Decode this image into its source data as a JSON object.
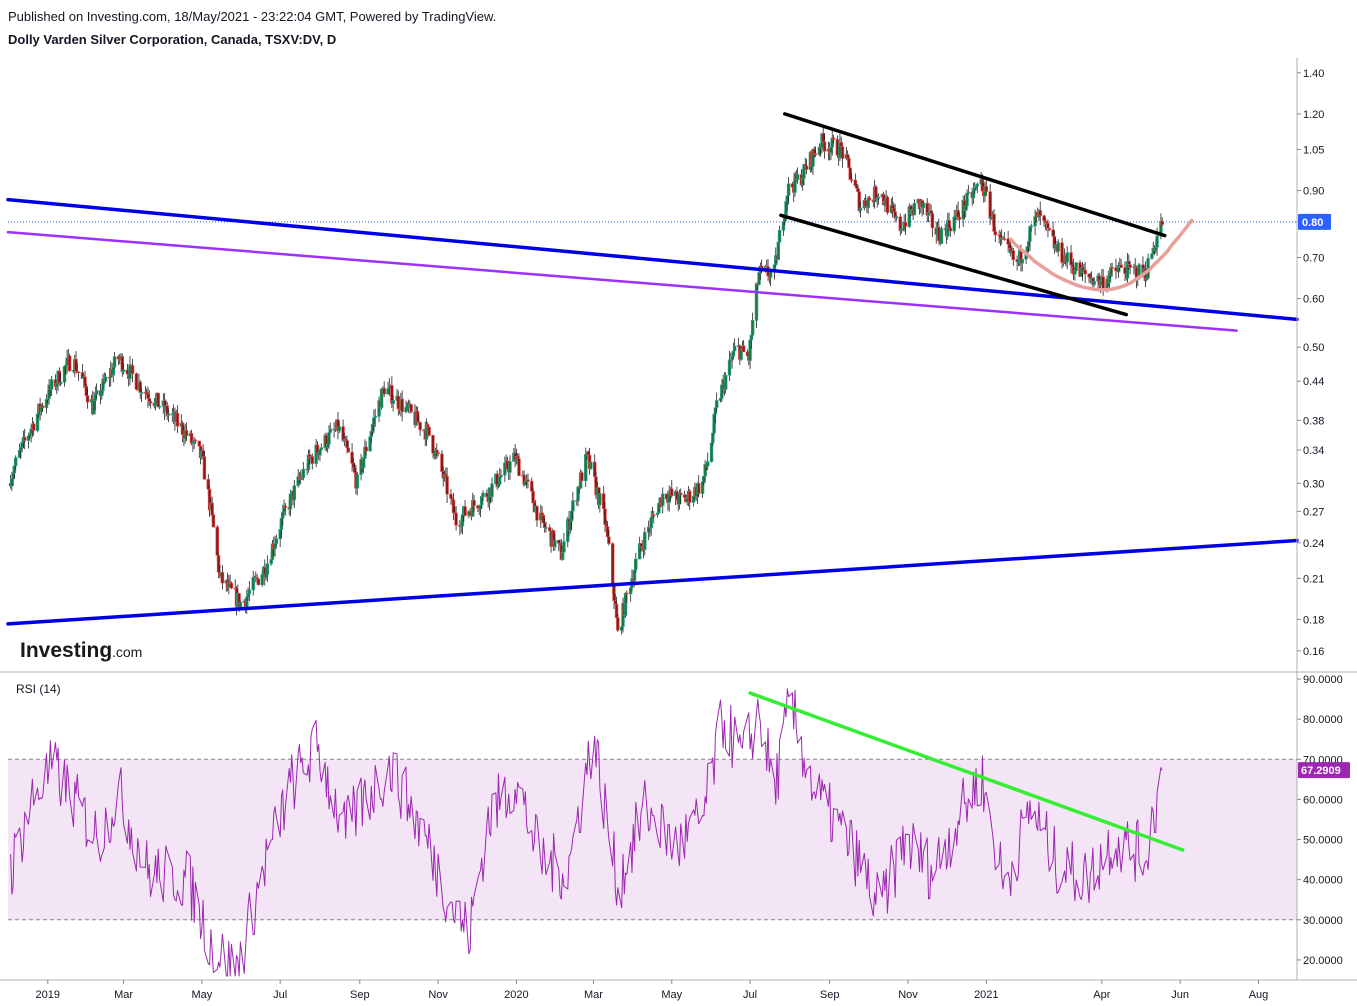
{
  "header": {
    "published": "Published on Investing.com, 18/May/2021 - 23:22:04 GMT, Powered by TradingView.",
    "title": "Dolly Varden Silver Corporation, Canada, TSXV:DV, D"
  },
  "logo": {
    "main": "Investing",
    "suffix": ".com"
  },
  "colors": {
    "up_candle": "#26a69a",
    "up_candle_body": "#1e7a3a",
    "down_candle": "#ef5350",
    "down_candle_body": "#8b1a1a",
    "blue_trendline": "#0000e6",
    "purple_trendline": "#9b30ff",
    "channel_line": "#000000",
    "rounding_arc": "#e8a09a",
    "rsi_line": "#9c27b0",
    "rsi_band": "#f3e5f5",
    "rsi_trendline": "#33ee33",
    "price_badge": "#2962ff",
    "rsi_badge": "#9c27b0"
  },
  "chart_data": [
    {
      "type": "candlestick",
      "symbol": "TSXV:DV",
      "interval": "D",
      "yscale": "log",
      "ylim": [
        0.15,
        1.48
      ],
      "ytick_labels": [
        "1.40",
        "1.20",
        "1.05",
        "0.90",
        "0.80",
        "0.70",
        "0.60",
        "0.50",
        "0.44",
        "0.38",
        "0.34",
        "0.30",
        "0.27",
        "0.24",
        "0.21",
        "0.18",
        "0.16"
      ],
      "ytick_values": [
        1.4,
        1.2,
        1.05,
        0.9,
        0.8,
        0.7,
        0.6,
        0.5,
        0.44,
        0.38,
        0.34,
        0.3,
        0.27,
        0.24,
        0.21,
        0.18,
        0.16
      ],
      "last_price": 0.8,
      "last_price_label": "0.80",
      "x_range": [
        "2018-12-01",
        "2021-08-31"
      ],
      "xtick_labels": [
        "2019",
        "Mar",
        "May",
        "Jul",
        "Sep",
        "Nov",
        "2020",
        "Mar",
        "May",
        "Jul",
        "Sep",
        "Nov",
        "2021",
        "Apr",
        "Jun",
        "Aug"
      ],
      "xtick_dates": [
        "2019-01-01",
        "2019-03-01",
        "2019-05-01",
        "2019-07-01",
        "2019-09-01",
        "2019-11-01",
        "2020-01-01",
        "2020-03-01",
        "2020-05-01",
        "2020-07-01",
        "2020-09-01",
        "2020-11-01",
        "2021-01-01",
        "2021-04-01",
        "2021-06-01",
        "2021-08-01"
      ],
      "price_path": [
        {
          "date": "2018-12-01",
          "close": 0.3
        },
        {
          "date": "2019-01-01",
          "close": 0.42
        },
        {
          "date": "2019-01-20",
          "close": 0.48
        },
        {
          "date": "2019-02-05",
          "close": 0.4
        },
        {
          "date": "2019-02-25",
          "close": 0.48
        },
        {
          "date": "2019-03-15",
          "close": 0.43
        },
        {
          "date": "2019-04-15",
          "close": 0.37
        },
        {
          "date": "2019-05-01",
          "close": 0.33
        },
        {
          "date": "2019-05-15",
          "close": 0.21
        },
        {
          "date": "2019-06-01",
          "close": 0.19
        },
        {
          "date": "2019-06-20",
          "close": 0.22
        },
        {
          "date": "2019-07-05",
          "close": 0.27
        },
        {
          "date": "2019-07-25",
          "close": 0.33
        },
        {
          "date": "2019-08-15",
          "close": 0.37
        },
        {
          "date": "2019-08-30",
          "close": 0.3
        },
        {
          "date": "2019-09-20",
          "close": 0.43
        },
        {
          "date": "2019-10-05",
          "close": 0.4
        },
        {
          "date": "2019-10-25",
          "close": 0.36
        },
        {
          "date": "2019-11-15",
          "close": 0.26
        },
        {
          "date": "2019-12-10",
          "close": 0.29
        },
        {
          "date": "2019-12-31",
          "close": 0.33
        },
        {
          "date": "2020-01-20",
          "close": 0.26
        },
        {
          "date": "2020-02-05",
          "close": 0.23
        },
        {
          "date": "2020-02-25",
          "close": 0.33
        },
        {
          "date": "2020-03-10",
          "close": 0.26
        },
        {
          "date": "2020-03-20",
          "close": 0.17
        },
        {
          "date": "2020-04-05",
          "close": 0.23
        },
        {
          "date": "2020-04-25",
          "close": 0.29
        },
        {
          "date": "2020-05-10",
          "close": 0.28
        },
        {
          "date": "2020-05-25",
          "close": 0.3
        },
        {
          "date": "2020-05-31",
          "close": 0.34
        },
        {
          "date": "2020-06-05",
          "close": 0.4
        },
        {
          "date": "2020-06-20",
          "close": 0.5
        },
        {
          "date": "2020-06-30",
          "close": 0.48
        },
        {
          "date": "2020-07-08",
          "close": 0.66
        },
        {
          "date": "2020-07-20",
          "close": 0.66
        },
        {
          "date": "2020-07-30",
          "close": 0.9
        },
        {
          "date": "2020-08-10",
          "close": 0.95
        },
        {
          "date": "2020-08-25",
          "close": 1.08
        },
        {
          "date": "2020-09-10",
          "close": 1.05
        },
        {
          "date": "2020-09-25",
          "close": 0.85
        },
        {
          "date": "2020-10-10",
          "close": 0.9
        },
        {
          "date": "2020-10-25",
          "close": 0.78
        },
        {
          "date": "2020-11-10",
          "close": 0.86
        },
        {
          "date": "2020-11-25",
          "close": 0.76
        },
        {
          "date": "2020-12-10",
          "close": 0.82
        },
        {
          "date": "2020-12-28",
          "close": 0.93
        },
        {
          "date": "2021-01-10",
          "close": 0.75
        },
        {
          "date": "2021-01-25",
          "close": 0.68
        },
        {
          "date": "2021-02-10",
          "close": 0.82
        },
        {
          "date": "2021-02-25",
          "close": 0.72
        },
        {
          "date": "2021-03-15",
          "close": 0.66
        },
        {
          "date": "2021-03-31",
          "close": 0.64
        },
        {
          "date": "2021-04-15",
          "close": 0.67
        },
        {
          "date": "2021-05-05",
          "close": 0.66
        },
        {
          "date": "2021-05-18",
          "close": 0.8
        }
      ],
      "trendlines": [
        {
          "name": "blue-upper",
          "from": {
            "date": "2018-12-01",
            "value": 0.87
          },
          "to": {
            "date": "2021-08-31",
            "value": 0.555
          }
        },
        {
          "name": "blue-lower",
          "from": {
            "date": "2018-12-01",
            "value": 0.177
          },
          "to": {
            "date": "2021-08-31",
            "value": 0.242
          }
        },
        {
          "name": "purple",
          "from": {
            "date": "2018-12-01",
            "value": 0.77
          },
          "to": {
            "date": "2021-07-15",
            "value": 0.532
          }
        },
        {
          "name": "channel-top",
          "from": {
            "date": "2020-07-28",
            "value": 1.2
          },
          "to": {
            "date": "2021-05-20",
            "value": 0.76
          }
        },
        {
          "name": "channel-bottom",
          "from": {
            "date": "2020-07-25",
            "value": 0.82
          },
          "to": {
            "date": "2021-04-20",
            "value": 0.565
          }
        }
      ]
    },
    {
      "type": "line",
      "title": "RSI (14)",
      "ylim": [
        15,
        91
      ],
      "ytick_labels": [
        "90.0000",
        "80.0000",
        "70.0000",
        "60.0000",
        "50.0000",
        "40.0000",
        "30.0000",
        "20.0000"
      ],
      "ytick_values": [
        90,
        80,
        70,
        60,
        50,
        40,
        30,
        20
      ],
      "band": [
        30,
        70
      ],
      "last_value": 67.29,
      "last_value_label": "67.2909",
      "rsi_path": [
        {
          "date": "2018-12-01",
          "value": 40
        },
        {
          "date": "2018-12-20",
          "value": 60
        },
        {
          "date": "2019-01-05",
          "value": 68
        },
        {
          "date": "2019-01-25",
          "value": 58
        },
        {
          "date": "2019-02-10",
          "value": 50
        },
        {
          "date": "2019-02-25",
          "value": 62
        },
        {
          "date": "2019-03-20",
          "value": 42
        },
        {
          "date": "2019-04-20",
          "value": 40
        },
        {
          "date": "2019-05-10",
          "value": 23
        },
        {
          "date": "2019-05-28",
          "value": 17
        },
        {
          "date": "2019-06-20",
          "value": 45
        },
        {
          "date": "2019-07-10",
          "value": 64
        },
        {
          "date": "2019-07-30",
          "value": 73
        },
        {
          "date": "2019-08-20",
          "value": 52
        },
        {
          "date": "2019-09-05",
          "value": 60
        },
        {
          "date": "2019-09-25",
          "value": 68
        },
        {
          "date": "2019-10-20",
          "value": 52
        },
        {
          "date": "2019-11-10",
          "value": 35
        },
        {
          "date": "2019-11-25",
          "value": 26
        },
        {
          "date": "2019-12-10",
          "value": 55
        },
        {
          "date": "2019-12-31",
          "value": 65
        },
        {
          "date": "2020-01-20",
          "value": 45
        },
        {
          "date": "2020-02-10",
          "value": 42
        },
        {
          "date": "2020-03-01",
          "value": 76
        },
        {
          "date": "2020-03-20",
          "value": 38
        },
        {
          "date": "2020-04-10",
          "value": 58
        },
        {
          "date": "2020-05-05",
          "value": 48
        },
        {
          "date": "2020-05-25",
          "value": 55
        },
        {
          "date": "2020-06-10",
          "value": 80
        },
        {
          "date": "2020-06-25",
          "value": 70
        },
        {
          "date": "2020-07-08",
          "value": 82
        },
        {
          "date": "2020-07-20",
          "value": 62
        },
        {
          "date": "2020-08-01",
          "value": 84
        },
        {
          "date": "2020-08-20",
          "value": 62
        },
        {
          "date": "2020-09-20",
          "value": 47
        },
        {
          "date": "2020-10-10",
          "value": 33
        },
        {
          "date": "2020-10-30",
          "value": 50
        },
        {
          "date": "2020-11-20",
          "value": 42
        },
        {
          "date": "2020-12-10",
          "value": 55
        },
        {
          "date": "2020-12-28",
          "value": 66
        },
        {
          "date": "2021-01-15",
          "value": 38
        },
        {
          "date": "2021-02-05",
          "value": 58
        },
        {
          "date": "2021-02-25",
          "value": 44
        },
        {
          "date": "2021-03-20",
          "value": 40
        },
        {
          "date": "2021-04-10",
          "value": 50
        },
        {
          "date": "2021-05-05",
          "value": 46
        },
        {
          "date": "2021-05-18",
          "value": 67.29
        }
      ],
      "trendlines": [
        {
          "name": "rsi-trend",
          "from": {
            "date": "2020-07-01",
            "value": 86.5
          },
          "to": {
            "date": "2021-06-03",
            "value": 47.4
          }
        }
      ]
    }
  ]
}
